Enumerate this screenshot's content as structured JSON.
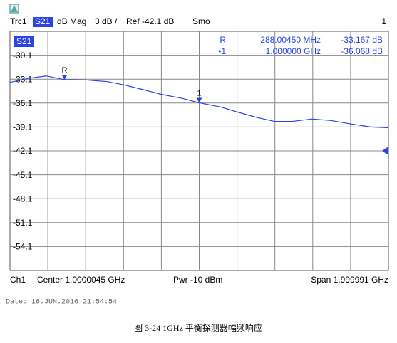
{
  "chart_data": {
    "type": "line",
    "measurement": "S21",
    "header": {
      "format": "dB Mag",
      "scale": "3 dB /",
      "ref": "Ref -42.1 dB",
      "smoothing": "Smo",
      "channel_index": "1"
    },
    "ref_value": -42.1,
    "x": [
      9e-06,
      0.098,
      0.192,
      0.2880045,
      0.399,
      0.512,
      0.599,
      0.701,
      0.798,
      0.908,
      1.0,
      1.115,
      1.198,
      1.303,
      1.397,
      1.492,
      1.597,
      1.699,
      1.797,
      1.906,
      2.0
    ],
    "series": [
      {
        "name": "Trc1",
        "color": "#2a44e6",
        "values": [
          -33.5,
          -33.0,
          -32.7,
          -33.167,
          -33.2,
          -33.4,
          -33.8,
          -34.4,
          -35.0,
          -35.5,
          -36.068,
          -36.6,
          -37.2,
          -37.9,
          -38.4,
          -38.4,
          -38.1,
          -38.3,
          -38.7,
          -39.1,
          -39.2
        ]
      }
    ],
    "xlim": [
      9e-06,
      2.0
    ],
    "ylim": [
      -57.1,
      -27.1
    ],
    "yticks": [
      -30.1,
      -33.1,
      -36.1,
      -39.1,
      -42.1,
      -45.1,
      -48.1,
      -51.1,
      -54.1
    ],
    "grid": true,
    "markers": [
      {
        "label": "R",
        "table_label": "R",
        "x": 0.2880045,
        "x_label": "288.00450 MHz",
        "value": -33.167,
        "value_label": "-33.167 dB"
      },
      {
        "label": "1",
        "table_label": "•1",
        "x": 1.0,
        "x_label": "1.000000 GHz",
        "value": -36.068,
        "value_label": "-36.068 dB"
      }
    ],
    "footer": {
      "channel": "Ch1",
      "center": "Center 1.0000045 GHz",
      "power": "Pwr -10 dBm",
      "span": "Span 1.999991 GHz"
    }
  },
  "date": "Date: 16.JUN.2016  21:54:54",
  "caption": "图 3-24 1GHz 平衡探测器幅频响应"
}
